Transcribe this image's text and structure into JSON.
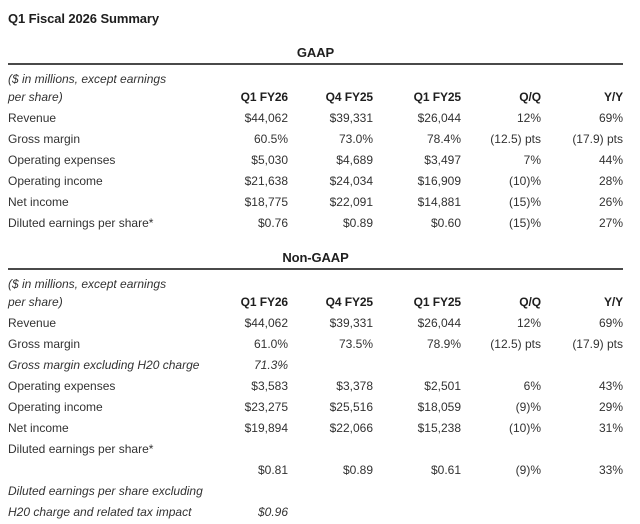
{
  "page_title": "Q1 Fiscal 2026 Summary",
  "colors": {
    "background": "#ffffff",
    "text": "#323232",
    "heading": "#1e1e1e",
    "rule": "#4a4a4a"
  },
  "tables": [
    {
      "section_title": "GAAP",
      "caption": [
        "($ in millions, except earnings",
        "per share)"
      ],
      "columns": [
        "Q1 FY26",
        "Q4 FY25",
        "Q1 FY25",
        "Q/Q",
        "Y/Y"
      ],
      "rows": [
        {
          "label": "Revenue",
          "italic": false,
          "values": [
            "$44,062",
            "$39,331",
            "$26,044",
            "12%",
            "69%"
          ]
        },
        {
          "label": "Gross margin",
          "italic": false,
          "values": [
            "60.5%",
            "73.0%",
            "78.4%",
            "(12.5) pts",
            "(17.9) pts"
          ]
        },
        {
          "label": "Operating expenses",
          "italic": false,
          "values": [
            "$5,030",
            "$4,689",
            "$3,497",
            "7%",
            "44%"
          ]
        },
        {
          "label": "Operating income",
          "italic": false,
          "values": [
            "$21,638",
            "$24,034",
            "$16,909",
            "(10)%",
            "28%"
          ]
        },
        {
          "label": "Net income",
          "italic": false,
          "values": [
            "$18,775",
            "$22,091",
            "$14,881",
            "(15)%",
            "26%"
          ]
        },
        {
          "label": "Diluted earnings per share*",
          "italic": false,
          "values": [
            "$0.76",
            "$0.89",
            "$0.60",
            "(15)%",
            "27%"
          ]
        }
      ]
    },
    {
      "section_title": "Non-GAAP",
      "caption": [
        "($ in millions, except earnings",
        "per share)"
      ],
      "columns": [
        "Q1 FY26",
        "Q4 FY25",
        "Q1 FY25",
        "Q/Q",
        "Y/Y"
      ],
      "rows": [
        {
          "label": "Revenue",
          "italic": false,
          "values": [
            "$44,062",
            "$39,331",
            "$26,044",
            "12%",
            "69%"
          ]
        },
        {
          "label": "Gross margin",
          "italic": false,
          "values": [
            "61.0%",
            "73.5%",
            "78.9%",
            "(12.5) pts",
            "(17.9) pts"
          ]
        },
        {
          "label": "Gross margin excluding H20 charge",
          "italic": true,
          "values": [
            "71.3%",
            "",
            "",
            "",
            ""
          ]
        },
        {
          "label": "Operating expenses",
          "italic": false,
          "values": [
            "$3,583",
            "$3,378",
            "$2,501",
            "6%",
            "43%"
          ]
        },
        {
          "label": "Operating income",
          "italic": false,
          "values": [
            "$23,275",
            "$25,516",
            "$18,059",
            "(9)%",
            "29%"
          ]
        },
        {
          "label": "Net income",
          "italic": false,
          "values": [
            "$19,894",
            "$22,066",
            "$15,238",
            "(10)%",
            "31%"
          ]
        },
        {
          "label": "Diluted earnings per share*",
          "italic": false,
          "values": [
            "",
            "",
            "",
            "",
            ""
          ]
        },
        {
          "label": "",
          "italic": false,
          "values": [
            "$0.81",
            "$0.89",
            "$0.61",
            "(9)%",
            "33%"
          ]
        },
        {
          "label": "Diluted earnings per share excluding",
          "italic": true,
          "values": [
            "",
            "",
            "",
            "",
            ""
          ]
        },
        {
          "label": "H20 charge and related tax impact",
          "italic": true,
          "values": [
            "$0.96",
            "",
            "",
            "",
            ""
          ]
        }
      ]
    }
  ]
}
